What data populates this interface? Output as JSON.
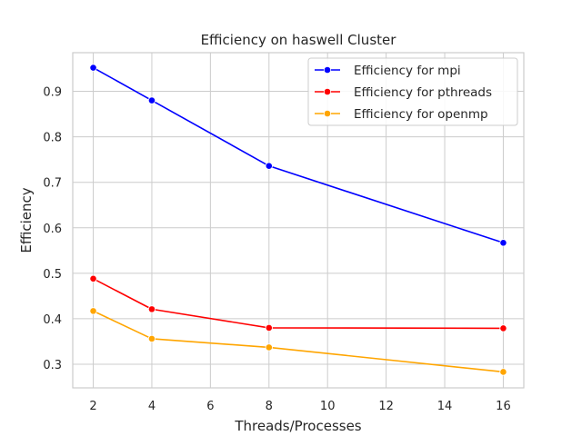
{
  "chart_data": {
    "type": "line",
    "title": "Efficiency on haswell Cluster",
    "xlabel": "Threads/Processes",
    "ylabel": "Efficiency",
    "x": [
      2,
      4,
      8,
      16
    ],
    "xlim": [
      1.3,
      16.7
    ],
    "ylim": [
      0.248,
      0.985
    ],
    "xticks": [
      2,
      4,
      6,
      8,
      10,
      12,
      14,
      16
    ],
    "yticks": [
      0.3,
      0.4,
      0.5,
      0.6,
      0.7,
      0.8,
      0.9
    ],
    "grid": true,
    "legend_position": "top-right",
    "series": [
      {
        "name": "Efficiency for mpi",
        "color": "#0000ff",
        "values": [
          0.952,
          0.88,
          0.736,
          0.567
        ]
      },
      {
        "name": "Efficiency for pthreads",
        "color": "#ff0000",
        "values": [
          0.488,
          0.421,
          0.38,
          0.379
        ]
      },
      {
        "name": "Efficiency for openmp",
        "color": "#ffa500",
        "values": [
          0.417,
          0.356,
          0.337,
          0.283
        ]
      }
    ]
  }
}
